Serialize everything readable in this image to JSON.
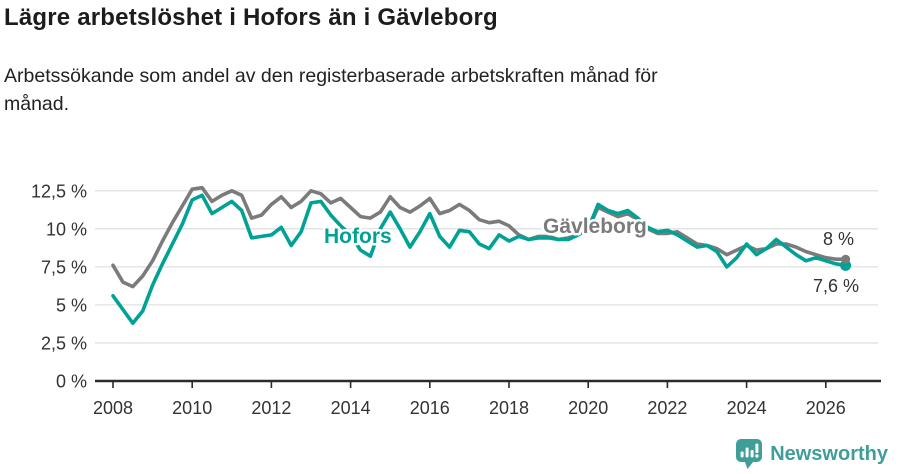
{
  "header": {
    "title": "Lägre arbetslöshet i Hofors än i Gävleborg",
    "subtitle_lines": [
      "Arbetssökande som andel av den registerbaserade arbetskraften månad för",
      "månad."
    ]
  },
  "chart_data": {
    "type": "line",
    "title": "Lägre arbetslöshet i Hofors än i Gävleborg",
    "xlabel": "",
    "ylabel": "",
    "unit": "%",
    "grid": "horizontal",
    "legend_position": "inline-labels",
    "x_start": 2008,
    "x_step_years": 0.25,
    "ylim": [
      0,
      13.5
    ],
    "xlim": [
      2007.5,
      2027.3
    ],
    "y_ticks": [
      {
        "value": 0,
        "label": "0 %"
      },
      {
        "value": 2.5,
        "label": "2,5 %"
      },
      {
        "value": 5,
        "label": "5 %"
      },
      {
        "value": 7.5,
        "label": "7,5 %"
      },
      {
        "value": 10,
        "label": "10 %"
      },
      {
        "value": 12.5,
        "label": "12,5 %"
      }
    ],
    "x_ticks": [
      {
        "value": 2008,
        "label": "2008"
      },
      {
        "value": 2010,
        "label": "2010"
      },
      {
        "value": 2012,
        "label": "2012"
      },
      {
        "value": 2014,
        "label": "2014"
      },
      {
        "value": 2016,
        "label": "2016"
      },
      {
        "value": 2018,
        "label": "2018"
      },
      {
        "value": 2020,
        "label": "2020"
      },
      {
        "value": 2022,
        "label": "2022"
      },
      {
        "value": 2024,
        "label": "2024"
      },
      {
        "value": 2026,
        "label": "2026"
      }
    ],
    "series": [
      {
        "name": "Gävleborg",
        "color": "#7b7b7b",
        "end_label": "8 %",
        "end_value": 8.0,
        "values": [
          7.6,
          6.5,
          6.2,
          6.9,
          7.9,
          9.2,
          10.4,
          11.5,
          12.6,
          12.7,
          11.8,
          12.2,
          12.5,
          12.2,
          10.7,
          10.9,
          11.6,
          12.1,
          11.4,
          11.8,
          12.5,
          12.3,
          11.7,
          12.0,
          11.4,
          10.8,
          10.7,
          11.1,
          12.1,
          11.4,
          11.1,
          11.5,
          12.0,
          11.0,
          11.2,
          11.6,
          11.2,
          10.6,
          10.4,
          10.5,
          10.2,
          9.6,
          9.3,
          9.5,
          9.5,
          9.3,
          9.4,
          9.7,
          10.0,
          11.4,
          11.1,
          10.8,
          11.0,
          10.6,
          10.0,
          9.7,
          9.7,
          9.8,
          9.4,
          9.0,
          8.9,
          8.7,
          8.3,
          8.6,
          8.9,
          8.6,
          8.7,
          9.0,
          9.0,
          8.8,
          8.5,
          8.3,
          8.1,
          8.0,
          8.0
        ]
      },
      {
        "name": "Hofors",
        "color": "#00a296",
        "end_label": "7,6 %",
        "end_value": 7.6,
        "values": [
          5.6,
          4.7,
          3.8,
          4.6,
          6.3,
          7.7,
          9.0,
          10.3,
          11.9,
          12.2,
          11.0,
          11.4,
          11.8,
          11.2,
          9.4,
          9.5,
          9.6,
          10.1,
          8.9,
          9.8,
          11.7,
          11.8,
          10.9,
          10.2,
          9.6,
          8.6,
          8.2,
          10.0,
          11.1,
          10.0,
          8.8,
          9.8,
          11.0,
          9.5,
          8.8,
          9.9,
          9.8,
          9.0,
          8.7,
          9.6,
          9.2,
          9.5,
          9.3,
          9.4,
          9.4,
          9.3,
          9.3,
          9.6,
          10.0,
          11.6,
          11.2,
          11.0,
          11.2,
          10.7,
          10.1,
          9.8,
          9.9,
          9.6,
          9.2,
          8.8,
          8.9,
          8.5,
          7.5,
          8.1,
          9.0,
          8.3,
          8.7,
          9.3,
          8.8,
          8.3,
          7.9,
          8.1,
          7.9,
          7.7,
          7.6
        ]
      }
    ]
  },
  "footer": {
    "brand": "Newsworthy",
    "brand_color": "#3f9e98",
    "logo_icon": "bar-chart-speech-bubble"
  }
}
